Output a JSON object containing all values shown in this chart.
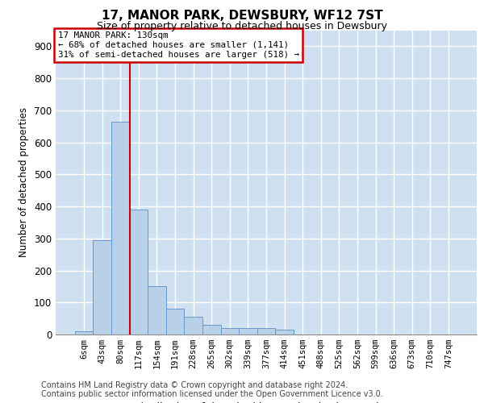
{
  "title": "17, MANOR PARK, DEWSBURY, WF12 7ST",
  "subtitle": "Size of property relative to detached houses in Dewsbury",
  "xlabel": "Distribution of detached houses by size in Dewsbury",
  "ylabel": "Number of detached properties",
  "bar_color": "#b8d0e8",
  "bar_edge_color": "#6699cc",
  "background_color": "#cfe0f0",
  "grid_color": "#ffffff",
  "categories": [
    "6sqm",
    "43sqm",
    "80sqm",
    "117sqm",
    "154sqm",
    "191sqm",
    "228sqm",
    "265sqm",
    "302sqm",
    "339sqm",
    "377sqm",
    "414sqm",
    "451sqm",
    "488sqm",
    "525sqm",
    "562sqm",
    "599sqm",
    "636sqm",
    "673sqm",
    "710sqm",
    "747sqm"
  ],
  "values": [
    10,
    295,
    665,
    390,
    150,
    80,
    55,
    30,
    20,
    20,
    20,
    15,
    0,
    0,
    0,
    0,
    0,
    0,
    0,
    0,
    0
  ],
  "ylim": [
    0,
    950
  ],
  "yticks": [
    0,
    100,
    200,
    300,
    400,
    500,
    600,
    700,
    800,
    900
  ],
  "red_line_x": 2.5,
  "property_label": "17 MANOR PARK: 130sqm",
  "annotation_line1": "← 68% of detached houses are smaller (1,141)",
  "annotation_line2": "31% of semi-detached houses are larger (518) →",
  "annotation_box_facecolor": "#ffffff",
  "annotation_box_edgecolor": "#cc0000",
  "footnote1": "Contains HM Land Registry data © Crown copyright and database right 2024.",
  "footnote2": "Contains public sector information licensed under the Open Government Licence v3.0."
}
